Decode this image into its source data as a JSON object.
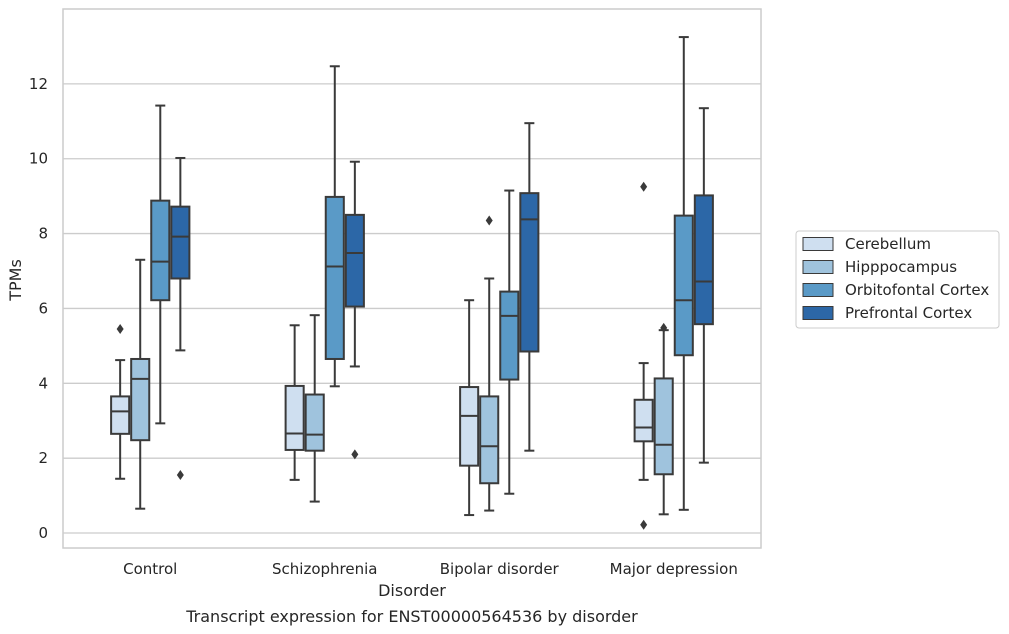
{
  "chart_data": {
    "type": "box",
    "xlabel": "Disorder",
    "ylabel": "TPMs",
    "caption": "Transcript expression for ENST00000564536 by disorder",
    "categories": [
      "Control",
      "Schizophrenia",
      "Bipolar disorder",
      "Major depression"
    ],
    "ylim": [
      -0.4,
      14.0
    ],
    "yticks": [
      0,
      2,
      4,
      6,
      8,
      10,
      12
    ],
    "grid": "horizontal",
    "legend_position": "right",
    "series": [
      {
        "name": "Cerebellum",
        "color": "#cfdff0",
        "boxes": [
          {
            "whislo": 1.45,
            "q1": 2.65,
            "med": 3.25,
            "q3": 3.65,
            "whishi": 4.62,
            "fliers": [
              5.45
            ]
          },
          {
            "whislo": 1.42,
            "q1": 2.22,
            "med": 2.66,
            "q3": 3.93,
            "whishi": 5.55,
            "fliers": []
          },
          {
            "whislo": 0.48,
            "q1": 1.8,
            "med": 3.13,
            "q3": 3.9,
            "whishi": 6.22,
            "fliers": []
          },
          {
            "whislo": 1.42,
            "q1": 2.45,
            "med": 2.82,
            "q3": 3.56,
            "whishi": 4.54,
            "fliers": [
              9.25,
              0.22
            ]
          }
        ]
      },
      {
        "name": "Hipppocampus",
        "color": "#9fc3dd",
        "boxes": [
          {
            "whislo": 0.65,
            "q1": 2.48,
            "med": 4.12,
            "q3": 4.65,
            "whishi": 7.3,
            "fliers": []
          },
          {
            "whislo": 0.84,
            "q1": 2.2,
            "med": 2.63,
            "q3": 3.7,
            "whishi": 5.82,
            "fliers": []
          },
          {
            "whislo": 0.6,
            "q1": 1.33,
            "med": 2.32,
            "q3": 3.65,
            "whishi": 6.8,
            "fliers": [
              8.35
            ]
          },
          {
            "whislo": 0.5,
            "q1": 1.57,
            "med": 2.36,
            "q3": 4.13,
            "whishi": 5.42,
            "fliers": [
              5.48
            ]
          }
        ]
      },
      {
        "name": "Orbitofontal Cortex",
        "color": "#5a9ac7",
        "boxes": [
          {
            "whislo": 2.93,
            "q1": 6.22,
            "med": 7.25,
            "q3": 8.88,
            "whishi": 11.42,
            "fliers": []
          },
          {
            "whislo": 3.92,
            "q1": 4.65,
            "med": 7.12,
            "q3": 8.98,
            "whishi": 12.47,
            "fliers": []
          },
          {
            "whislo": 1.05,
            "q1": 4.1,
            "med": 5.8,
            "q3": 6.45,
            "whishi": 9.15,
            "fliers": []
          },
          {
            "whislo": 0.62,
            "q1": 4.75,
            "med": 6.22,
            "q3": 8.48,
            "whishi": 13.25,
            "fliers": []
          }
        ]
      },
      {
        "name": "Prefrontal Cortex",
        "color": "#2c67a7",
        "boxes": [
          {
            "whislo": 4.88,
            "q1": 6.8,
            "med": 7.92,
            "q3": 8.72,
            "whishi": 10.02,
            "fliers": [
              1.55
            ]
          },
          {
            "whislo": 4.45,
            "q1": 6.05,
            "med": 7.48,
            "q3": 8.5,
            "whishi": 9.92,
            "fliers": [
              2.1
            ]
          },
          {
            "whislo": 2.2,
            "q1": 4.85,
            "med": 8.38,
            "q3": 9.08,
            "whishi": 10.95,
            "fliers": []
          },
          {
            "whislo": 1.88,
            "q1": 5.58,
            "med": 6.72,
            "q3": 9.02,
            "whishi": 11.35,
            "fliers": []
          }
        ]
      }
    ]
  }
}
